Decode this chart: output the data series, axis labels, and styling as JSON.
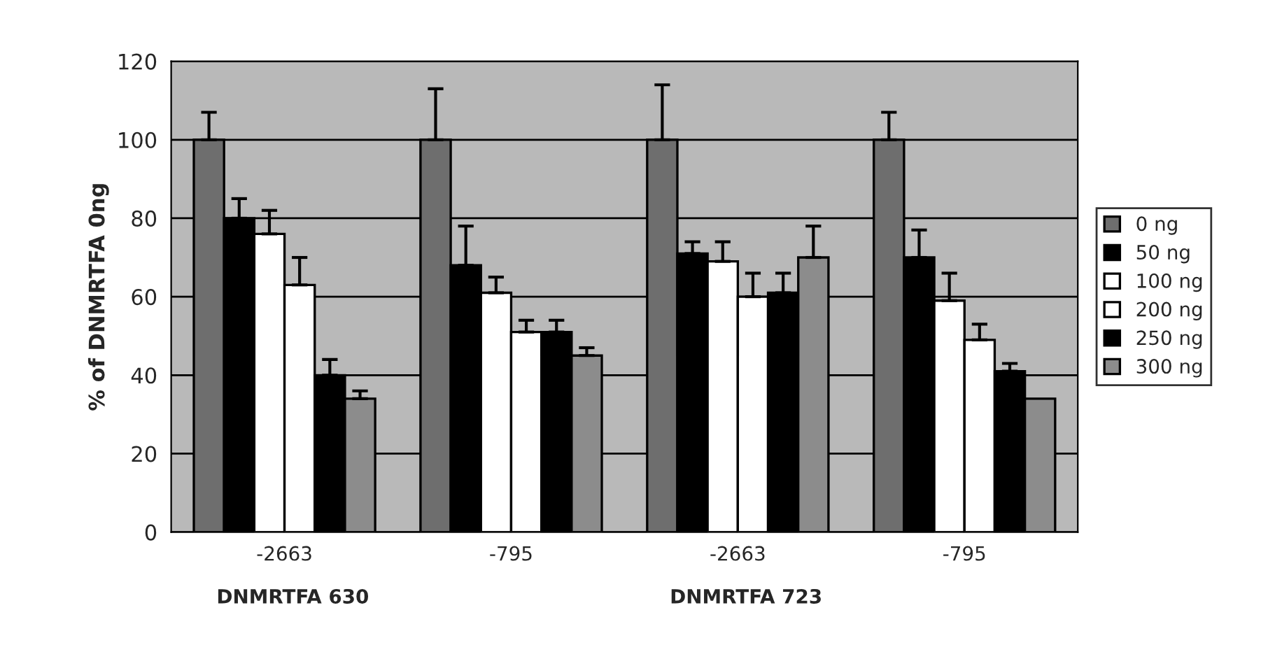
{
  "chart_data": {
    "type": "bar",
    "ylabel": "% of DNMRTFA 0ng",
    "categories": [
      "-2663",
      "-795",
      "-2663",
      "-795"
    ],
    "annotations": [
      "DNMRTFA 630",
      "DNMRTFA 723"
    ],
    "series": [
      {
        "name": "0 ng",
        "color": "#6e6e6e",
        "values": [
          100,
          100,
          100,
          100
        ],
        "errors": [
          [
            100,
            107
          ],
          [
            100,
            113
          ],
          [
            100,
            114
          ],
          [
            100,
            107
          ]
        ]
      },
      {
        "name": "50 ng",
        "color": "#000000",
        "values": [
          80,
          68,
          71,
          70
        ],
        "errors": [
          [
            80,
            85
          ],
          [
            68,
            78
          ],
          [
            71,
            74
          ],
          [
            70,
            77
          ]
        ]
      },
      {
        "name": "100 ng",
        "color": "#ffffff",
        "values": [
          76,
          61,
          69,
          59
        ],
        "errors": [
          [
            76,
            82
          ],
          [
            61,
            65
          ],
          [
            69,
            74
          ],
          [
            59,
            66
          ]
        ]
      },
      {
        "name": "200 ng",
        "color": "#ffffff",
        "values": [
          63,
          51,
          60,
          49
        ],
        "errors": [
          [
            63,
            70
          ],
          [
            51,
            54
          ],
          [
            60,
            66
          ],
          [
            49,
            53
          ]
        ]
      },
      {
        "name": "250 ng",
        "color": "#000000",
        "values": [
          40,
          51,
          61,
          41
        ],
        "errors": [
          [
            40,
            44
          ],
          [
            51,
            54
          ],
          [
            61,
            66
          ],
          [
            41,
            43
          ]
        ]
      },
      {
        "name": "300 ng",
        "color": "#8c8c8c",
        "values": [
          34,
          45,
          70,
          34
        ],
        "errors": [
          [
            34,
            36
          ],
          [
            45,
            47
          ],
          [
            70,
            78
          ],
          null
        ]
      }
    ],
    "ylim": [
      0,
      120
    ],
    "yticks": [
      0,
      20,
      40,
      60,
      80,
      100,
      120
    ],
    "grid": "y",
    "legend": "right"
  }
}
